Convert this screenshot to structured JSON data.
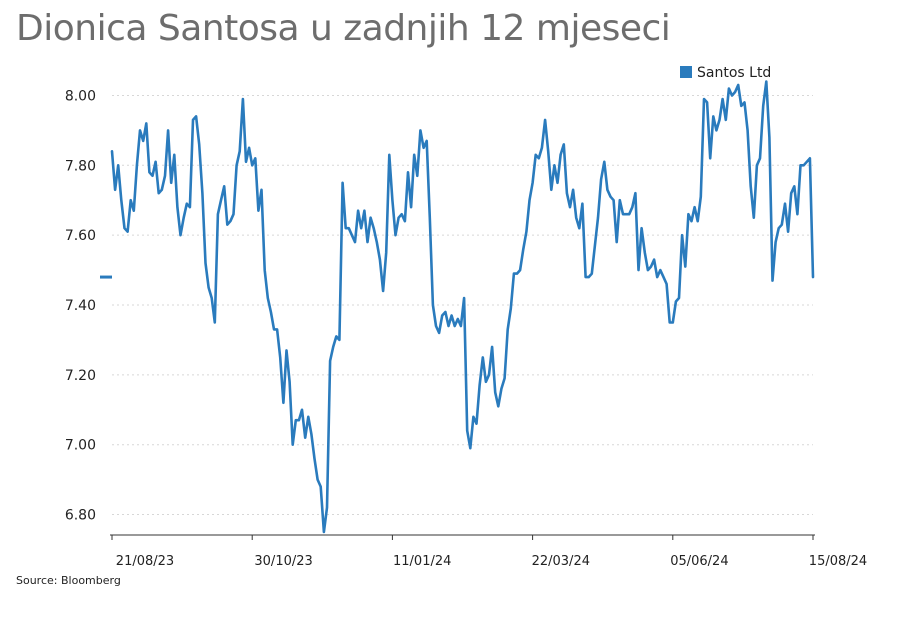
{
  "title": "Dionica Santosa u zadnjih 12 mjeseci",
  "source": "Source: Bloomberg",
  "colors": {
    "line": "#2a7bbd",
    "grid": "#d7d7d7",
    "title": "#6d6d6d"
  },
  "chart_data": {
    "type": "line",
    "title": "Dionica Santosa u zadnjih 12 mjeseci",
    "xlabel": "",
    "ylabel": "",
    "ylim": [
      6.75,
      8.05
    ],
    "yticks": [
      6.8,
      7.0,
      7.2,
      7.4,
      7.6,
      7.8,
      8.0
    ],
    "ytick_labels": [
      "6.80",
      "7.00",
      "7.20",
      "7.40",
      "7.60",
      "7.80",
      "8.00"
    ],
    "xtick_labels": [
      "21/08/23",
      "30/10/23",
      "11/01/24",
      "22/03/24",
      "05/06/24",
      "15/08/24"
    ],
    "grid": true,
    "legend_position": "top-right",
    "last_value": 7.48,
    "series": [
      {
        "name": "Santos Ltd",
        "values": [
          7.84,
          7.73,
          7.8,
          7.7,
          7.62,
          7.61,
          7.7,
          7.67,
          7.8,
          7.9,
          7.87,
          7.92,
          7.78,
          7.77,
          7.81,
          7.72,
          7.73,
          7.77,
          7.9,
          7.75,
          7.83,
          7.68,
          7.6,
          7.65,
          7.69,
          7.68,
          7.93,
          7.94,
          7.86,
          7.72,
          7.52,
          7.45,
          7.42,
          7.35,
          7.66,
          7.7,
          7.74,
          7.63,
          7.64,
          7.66,
          7.8,
          7.84,
          7.99,
          7.81,
          7.85,
          7.8,
          7.82,
          7.67,
          7.73,
          7.5,
          7.42,
          7.38,
          7.33,
          7.33,
          7.25,
          7.12,
          7.27,
          7.18,
          7.0,
          7.07,
          7.07,
          7.1,
          7.02,
          7.08,
          7.03,
          6.96,
          6.9,
          6.88,
          6.75,
          6.82,
          7.24,
          7.28,
          7.31,
          7.3,
          7.75,
          7.62,
          7.62,
          7.6,
          7.58,
          7.67,
          7.62,
          7.67,
          7.58,
          7.65,
          7.62,
          7.58,
          7.53,
          7.44,
          7.55,
          7.83,
          7.7,
          7.6,
          7.65,
          7.66,
          7.64,
          7.78,
          7.68,
          7.83,
          7.77,
          7.9,
          7.85,
          7.87,
          7.65,
          7.4,
          7.34,
          7.32,
          7.37,
          7.38,
          7.34,
          7.37,
          7.34,
          7.36,
          7.34,
          7.42,
          7.04,
          6.99,
          7.08,
          7.06,
          7.17,
          7.25,
          7.18,
          7.2,
          7.28,
          7.15,
          7.11,
          7.16,
          7.19,
          7.33,
          7.39,
          7.49,
          7.49,
          7.5,
          7.56,
          7.61,
          7.7,
          7.75,
          7.83,
          7.82,
          7.85,
          7.93,
          7.84,
          7.73,
          7.8,
          7.75,
          7.83,
          7.86,
          7.72,
          7.68,
          7.73,
          7.65,
          7.62,
          7.69,
          7.48,
          7.48,
          7.49,
          7.57,
          7.65,
          7.76,
          7.81,
          7.73,
          7.71,
          7.7,
          7.58,
          7.7,
          7.66,
          7.66,
          7.66,
          7.68,
          7.72,
          7.5,
          7.62,
          7.55,
          7.5,
          7.51,
          7.53,
          7.48,
          7.5,
          7.48,
          7.46,
          7.35,
          7.35,
          7.41,
          7.42,
          7.6,
          7.51,
          7.66,
          7.64,
          7.68,
          7.64,
          7.71,
          7.99,
          7.98,
          7.82,
          7.94,
          7.9,
          7.93,
          7.99,
          7.93,
          8.02,
          8.0,
          8.01,
          8.03,
          7.97,
          7.98,
          7.9,
          7.74,
          7.65,
          7.8,
          7.82,
          7.97,
          8.04,
          7.88,
          7.47,
          7.58,
          7.62,
          7.63,
          7.69,
          7.61,
          7.72,
          7.74,
          7.66,
          7.8,
          7.8,
          7.81,
          7.82,
          7.48
        ]
      }
    ]
  }
}
